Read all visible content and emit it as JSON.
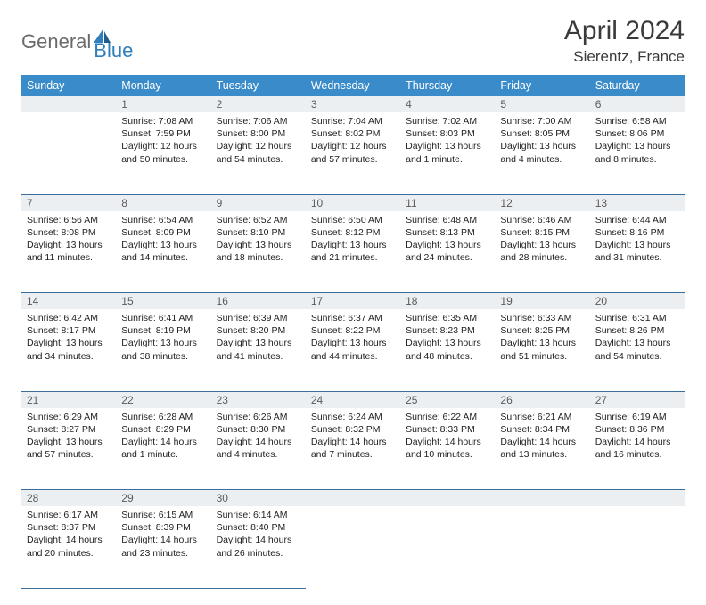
{
  "logo": {
    "part1": "General",
    "part2": "Blue"
  },
  "title": "April 2024",
  "location": "Sierentz, France",
  "colors": {
    "header_bg": "#3a8bc9",
    "header_text": "#ffffff",
    "daynum_bg": "#eceff1",
    "row_border": "#3a6d99",
    "logo_gray": "#6a6a6a",
    "logo_blue": "#2f7fbc"
  },
  "day_headers": [
    "Sunday",
    "Monday",
    "Tuesday",
    "Wednesday",
    "Thursday",
    "Friday",
    "Saturday"
  ],
  "weeks": [
    {
      "nums": [
        "",
        "1",
        "2",
        "3",
        "4",
        "5",
        "6"
      ],
      "cells": [
        null,
        {
          "sunrise": "Sunrise: 7:08 AM",
          "sunset": "Sunset: 7:59 PM",
          "day1": "Daylight: 12 hours",
          "day2": "and 50 minutes."
        },
        {
          "sunrise": "Sunrise: 7:06 AM",
          "sunset": "Sunset: 8:00 PM",
          "day1": "Daylight: 12 hours",
          "day2": "and 54 minutes."
        },
        {
          "sunrise": "Sunrise: 7:04 AM",
          "sunset": "Sunset: 8:02 PM",
          "day1": "Daylight: 12 hours",
          "day2": "and 57 minutes."
        },
        {
          "sunrise": "Sunrise: 7:02 AM",
          "sunset": "Sunset: 8:03 PM",
          "day1": "Daylight: 13 hours",
          "day2": "and 1 minute."
        },
        {
          "sunrise": "Sunrise: 7:00 AM",
          "sunset": "Sunset: 8:05 PM",
          "day1": "Daylight: 13 hours",
          "day2": "and 4 minutes."
        },
        {
          "sunrise": "Sunrise: 6:58 AM",
          "sunset": "Sunset: 8:06 PM",
          "day1": "Daylight: 13 hours",
          "day2": "and 8 minutes."
        }
      ]
    },
    {
      "nums": [
        "7",
        "8",
        "9",
        "10",
        "11",
        "12",
        "13"
      ],
      "cells": [
        {
          "sunrise": "Sunrise: 6:56 AM",
          "sunset": "Sunset: 8:08 PM",
          "day1": "Daylight: 13 hours",
          "day2": "and 11 minutes."
        },
        {
          "sunrise": "Sunrise: 6:54 AM",
          "sunset": "Sunset: 8:09 PM",
          "day1": "Daylight: 13 hours",
          "day2": "and 14 minutes."
        },
        {
          "sunrise": "Sunrise: 6:52 AM",
          "sunset": "Sunset: 8:10 PM",
          "day1": "Daylight: 13 hours",
          "day2": "and 18 minutes."
        },
        {
          "sunrise": "Sunrise: 6:50 AM",
          "sunset": "Sunset: 8:12 PM",
          "day1": "Daylight: 13 hours",
          "day2": "and 21 minutes."
        },
        {
          "sunrise": "Sunrise: 6:48 AM",
          "sunset": "Sunset: 8:13 PM",
          "day1": "Daylight: 13 hours",
          "day2": "and 24 minutes."
        },
        {
          "sunrise": "Sunrise: 6:46 AM",
          "sunset": "Sunset: 8:15 PM",
          "day1": "Daylight: 13 hours",
          "day2": "and 28 minutes."
        },
        {
          "sunrise": "Sunrise: 6:44 AM",
          "sunset": "Sunset: 8:16 PM",
          "day1": "Daylight: 13 hours",
          "day2": "and 31 minutes."
        }
      ]
    },
    {
      "nums": [
        "14",
        "15",
        "16",
        "17",
        "18",
        "19",
        "20"
      ],
      "cells": [
        {
          "sunrise": "Sunrise: 6:42 AM",
          "sunset": "Sunset: 8:17 PM",
          "day1": "Daylight: 13 hours",
          "day2": "and 34 minutes."
        },
        {
          "sunrise": "Sunrise: 6:41 AM",
          "sunset": "Sunset: 8:19 PM",
          "day1": "Daylight: 13 hours",
          "day2": "and 38 minutes."
        },
        {
          "sunrise": "Sunrise: 6:39 AM",
          "sunset": "Sunset: 8:20 PM",
          "day1": "Daylight: 13 hours",
          "day2": "and 41 minutes."
        },
        {
          "sunrise": "Sunrise: 6:37 AM",
          "sunset": "Sunset: 8:22 PM",
          "day1": "Daylight: 13 hours",
          "day2": "and 44 minutes."
        },
        {
          "sunrise": "Sunrise: 6:35 AM",
          "sunset": "Sunset: 8:23 PM",
          "day1": "Daylight: 13 hours",
          "day2": "and 48 minutes."
        },
        {
          "sunrise": "Sunrise: 6:33 AM",
          "sunset": "Sunset: 8:25 PM",
          "day1": "Daylight: 13 hours",
          "day2": "and 51 minutes."
        },
        {
          "sunrise": "Sunrise: 6:31 AM",
          "sunset": "Sunset: 8:26 PM",
          "day1": "Daylight: 13 hours",
          "day2": "and 54 minutes."
        }
      ]
    },
    {
      "nums": [
        "21",
        "22",
        "23",
        "24",
        "25",
        "26",
        "27"
      ],
      "cells": [
        {
          "sunrise": "Sunrise: 6:29 AM",
          "sunset": "Sunset: 8:27 PM",
          "day1": "Daylight: 13 hours",
          "day2": "and 57 minutes."
        },
        {
          "sunrise": "Sunrise: 6:28 AM",
          "sunset": "Sunset: 8:29 PM",
          "day1": "Daylight: 14 hours",
          "day2": "and 1 minute."
        },
        {
          "sunrise": "Sunrise: 6:26 AM",
          "sunset": "Sunset: 8:30 PM",
          "day1": "Daylight: 14 hours",
          "day2": "and 4 minutes."
        },
        {
          "sunrise": "Sunrise: 6:24 AM",
          "sunset": "Sunset: 8:32 PM",
          "day1": "Daylight: 14 hours",
          "day2": "and 7 minutes."
        },
        {
          "sunrise": "Sunrise: 6:22 AM",
          "sunset": "Sunset: 8:33 PM",
          "day1": "Daylight: 14 hours",
          "day2": "and 10 minutes."
        },
        {
          "sunrise": "Sunrise: 6:21 AM",
          "sunset": "Sunset: 8:34 PM",
          "day1": "Daylight: 14 hours",
          "day2": "and 13 minutes."
        },
        {
          "sunrise": "Sunrise: 6:19 AM",
          "sunset": "Sunset: 8:36 PM",
          "day1": "Daylight: 14 hours",
          "day2": "and 16 minutes."
        }
      ]
    },
    {
      "nums": [
        "28",
        "29",
        "30",
        "",
        "",
        "",
        ""
      ],
      "cells": [
        {
          "sunrise": "Sunrise: 6:17 AM",
          "sunset": "Sunset: 8:37 PM",
          "day1": "Daylight: 14 hours",
          "day2": "and 20 minutes."
        },
        {
          "sunrise": "Sunrise: 6:15 AM",
          "sunset": "Sunset: 8:39 PM",
          "day1": "Daylight: 14 hours",
          "day2": "and 23 minutes."
        },
        {
          "sunrise": "Sunrise: 6:14 AM",
          "sunset": "Sunset: 8:40 PM",
          "day1": "Daylight: 14 hours",
          "day2": "and 26 minutes."
        },
        null,
        null,
        null,
        null
      ]
    }
  ]
}
